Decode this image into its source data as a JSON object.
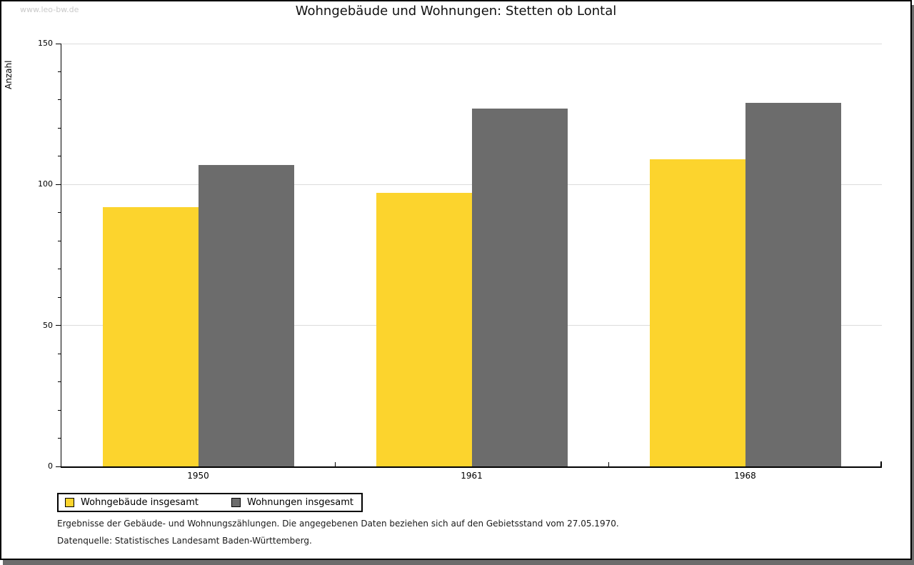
{
  "watermark": "www.leo-bw.de",
  "footnotes": {
    "line1": "Ergebnisse der Gebäude- und Wohnungszählungen. Die angegebenen Daten beziehen sich auf den Gebietsstand vom 27.05.1970.",
    "line2": "Datenquelle: Statistisches Landesamt Baden-Württemberg."
  },
  "colors": {
    "grid": "#dcdcdc",
    "axis": "#000000",
    "watermark": "#c9c9c9",
    "shadow": "#6c6c6c",
    "series_yellow": "#fcd42d",
    "series_gray": "#6c6c6c"
  },
  "chart_data": {
    "type": "bar",
    "title": "Wohngebäude und Wohnungen: Stetten ob Lontal",
    "ylabel": "Anzahl",
    "xlabel": "",
    "categories": [
      "1950",
      "1961",
      "1968"
    ],
    "series": [
      {
        "name": "Wohngebäude insgesamt",
        "color": "#fcd42d",
        "values": [
          92,
          97,
          109
        ]
      },
      {
        "name": "Wohnungen insgesamt",
        "color": "#6c6c6c",
        "values": [
          107,
          127,
          129
        ]
      }
    ],
    "ylim": [
      0,
      150
    ],
    "yticks": [
      0,
      50,
      100,
      150
    ],
    "minor_tick_step": 10,
    "grid": true,
    "legend_position": "bottom-left"
  }
}
